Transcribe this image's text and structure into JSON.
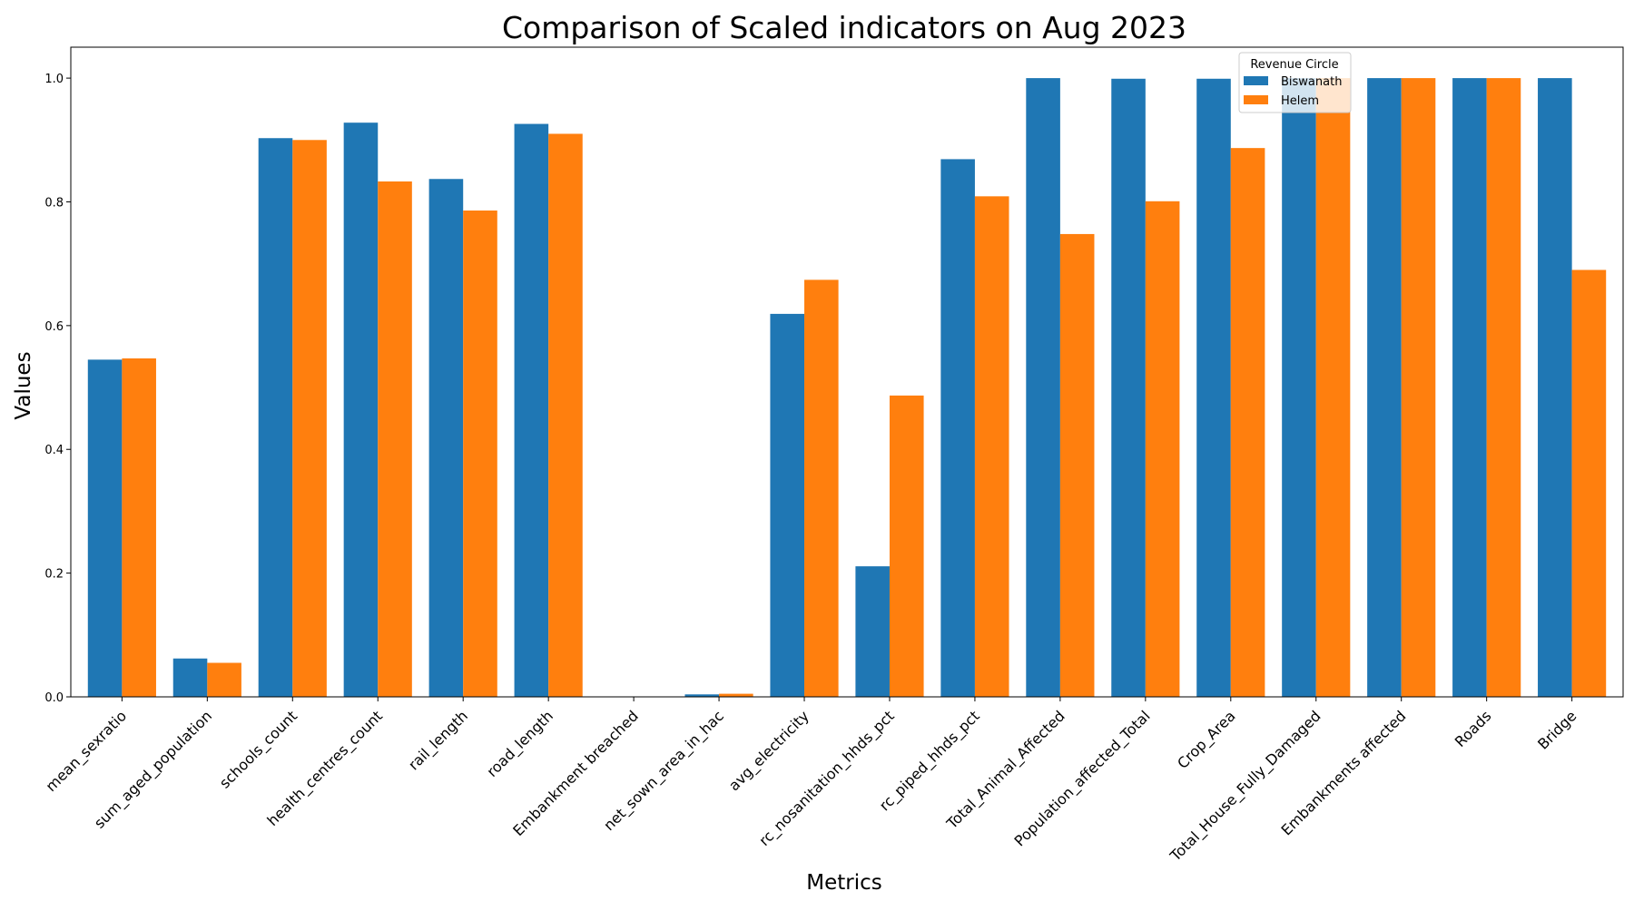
{
  "chart_data": {
    "type": "bar",
    "title": "Comparison of Scaled indicators on Aug 2023",
    "xlabel": "Metrics",
    "ylabel": "Values",
    "ylim": [
      0,
      1.05
    ],
    "yticks": [
      "0.0",
      "0.2",
      "0.4",
      "0.6",
      "0.8",
      "1.0"
    ],
    "grid": false,
    "legend": {
      "title": "Revenue Circle",
      "placement": "top-center-right"
    },
    "categories": [
      "mean_sexratio",
      "sum_aged_population",
      "schools_count",
      "health_centres_count",
      "rail_length",
      "road_length",
      "Embankment breached",
      "net_sown_area_in_hac",
      "avg_electricity",
      "rc_nosanitation_hhds_pct",
      "rc_piped_hhds_pct",
      "Total_Animal_Affected",
      "Population_affected_Total",
      "Crop_Area",
      "Total_House_Fully_Damaged",
      "Embankments affected",
      "Roads",
      "Bridge"
    ],
    "series": [
      {
        "name": "Biswanath",
        "color": "#1f77b4",
        "values": [
          0.545,
          0.062,
          0.903,
          0.928,
          0.837,
          0.926,
          0.0,
          0.004,
          0.619,
          0.211,
          0.869,
          1.0,
          0.999,
          0.999,
          1.0,
          1.0,
          1.0,
          1.0
        ]
      },
      {
        "name": "Helem",
        "color": "#ff7f0e",
        "values": [
          0.547,
          0.055,
          0.9,
          0.833,
          0.786,
          0.91,
          0.0,
          0.005,
          0.674,
          0.487,
          0.809,
          0.748,
          0.801,
          0.887,
          1.0,
          1.0,
          1.0,
          0.69
        ]
      }
    ]
  }
}
